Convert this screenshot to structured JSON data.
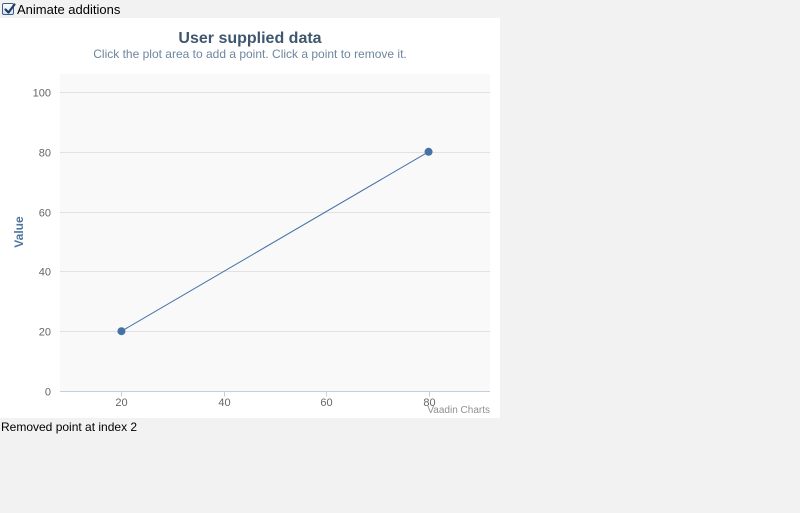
{
  "toolbar": {
    "animate_label": "Animate additions",
    "animate_checked": true
  },
  "chart_data": {
    "type": "line",
    "title": "User supplied data",
    "subtitle": "Click the plot area to add a point. Click a point to remove it.",
    "xlabel": "",
    "ylabel": "Value",
    "xlim": [
      8,
      92
    ],
    "ylim": [
      0,
      100
    ],
    "xticks": [
      20,
      40,
      60,
      80
    ],
    "yticks": [
      0,
      20,
      40,
      60,
      80,
      100
    ],
    "grid": true,
    "series": [
      {
        "x": [
          20,
          80
        ],
        "y": [
          20,
          80
        ]
      }
    ],
    "credits": "Vaadin Charts",
    "colors": {
      "series": "#4572a7",
      "title": "#3e576f",
      "plot_bg": "#f9f9f9"
    }
  },
  "status": {
    "message": "Removed point at index 2"
  }
}
